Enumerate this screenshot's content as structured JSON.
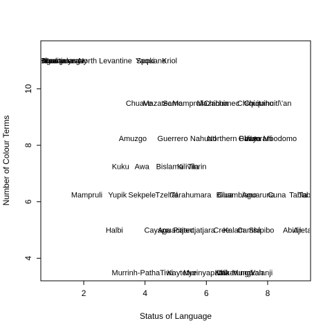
{
  "chart_data": {
    "type": "scatter",
    "marker": "text-labels",
    "title": "",
    "xlabel": "Status of Language",
    "ylabel": "Number of Colour Terms",
    "xlim": [
      0.6,
      9.4
    ],
    "ylim": [
      3.2,
      11.7
    ],
    "xticks": [
      2,
      4,
      6,
      8
    ],
    "yticks": [
      4,
      6,
      8,
      10
    ],
    "grid": false,
    "legend": "none",
    "points": [
      {
        "x": 0.9,
        "y": 11,
        "label": "Ilgar"
      },
      {
        "x": 1.0,
        "y": 11,
        "label": "Burarra"
      },
      {
        "x": 1.1,
        "y": 11,
        "label": "Djambarrpuyngu"
      },
      {
        "x": 1.2,
        "y": 11,
        "label": "Gunditjmara"
      },
      {
        "x": 1.4,
        "y": 11,
        "label": "Yuwaalaraay"
      },
      {
        "x": 2.7,
        "y": 11,
        "label": "North Levantine"
      },
      {
        "x": 4.0,
        "y": 11,
        "label": "Yaqui"
      },
      {
        "x": 4.2,
        "y": 11,
        "label": "Spokane"
      },
      {
        "x": 4.8,
        "y": 11,
        "label": "Kriol"
      },
      {
        "x": 3.8,
        "y": 9.5,
        "label": "Chuave"
      },
      {
        "x": 4.4,
        "y": 9.5,
        "label": "Mazatec"
      },
      {
        "x": 4.9,
        "y": 9.5,
        "label": "Samo"
      },
      {
        "x": 5.4,
        "y": 9.5,
        "label": "Mampruli"
      },
      {
        "x": 6.2,
        "y": 9.5,
        "label": "Mazahua"
      },
      {
        "x": 6.5,
        "y": 9.5,
        "label": "Chichimec"
      },
      {
        "x": 7.6,
        "y": 9.5,
        "label": "Chiquitano"
      },
      {
        "x": 8.0,
        "y": 9.5,
        "label": "Chiquihuitl\\'an"
      },
      {
        "x": 3.6,
        "y": 8.25,
        "label": "Amuzgo"
      },
      {
        "x": 4.9,
        "y": 8.25,
        "label": "Guerrero"
      },
      {
        "x": 5.9,
        "y": 8.25,
        "label": "Nahuatl"
      },
      {
        "x": 6.9,
        "y": 8.25,
        "label": "Northern Paiute"
      },
      {
        "x": 7.7,
        "y": 8.25,
        "label": "Waorani"
      },
      {
        "x": 8.0,
        "y": 8.25,
        "label": "Gbaya Mbodomo"
      },
      {
        "x": 3.2,
        "y": 7.25,
        "label": "Kuku"
      },
      {
        "x": 3.9,
        "y": 7.25,
        "label": "Awa"
      },
      {
        "x": 4.8,
        "y": 7.25,
        "label": "Bislama"
      },
      {
        "x": 5.4,
        "y": 7.25,
        "label": "Kilivila"
      },
      {
        "x": 5.7,
        "y": 7.25,
        "label": "Tinrin"
      },
      {
        "x": 2.1,
        "y": 6.25,
        "label": "Mampruli"
      },
      {
        "x": 3.1,
        "y": 6.25,
        "label": "Yupik"
      },
      {
        "x": 3.9,
        "y": 6.25,
        "label": "Sekpele"
      },
      {
        "x": 4.7,
        "y": 6.25,
        "label": "Tzeltal"
      },
      {
        "x": 5.5,
        "y": 6.25,
        "label": "Tarahumara"
      },
      {
        "x": 6.6,
        "y": 6.25,
        "label": "Bilua"
      },
      {
        "x": 7.0,
        "y": 6.25,
        "label": "Guambiano"
      },
      {
        "x": 7.7,
        "y": 6.25,
        "label": "Aguaruna"
      },
      {
        "x": 8.3,
        "y": 6.25,
        "label": "Cuna"
      },
      {
        "x": 9.0,
        "y": 6.25,
        "label": "Tabla"
      },
      {
        "x": 9.3,
        "y": 6.25,
        "label": "Tabla"
      },
      {
        "x": 3.0,
        "y": 5.0,
        "label": "Halbi"
      },
      {
        "x": 4.4,
        "y": 5.0,
        "label": "Cayapa"
      },
      {
        "x": 5.0,
        "y": 5.0,
        "label": "Aguacatec"
      },
      {
        "x": 5.6,
        "y": 5.0,
        "label": "Pitjantjatjara"
      },
      {
        "x": 6.5,
        "y": 5.0,
        "label": "Cree"
      },
      {
        "x": 6.9,
        "y": 5.0,
        "label": "Kalam"
      },
      {
        "x": 7.4,
        "y": 5.0,
        "label": "Camsá"
      },
      {
        "x": 7.8,
        "y": 5.0,
        "label": "Shipibo"
      },
      {
        "x": 8.8,
        "y": 5.0,
        "label": "Abidji"
      },
      {
        "x": 9.2,
        "y": 5.0,
        "label": "Aretan"
      },
      {
        "x": 3.7,
        "y": 3.5,
        "label": "Murrinh-Patha"
      },
      {
        "x": 4.7,
        "y": 3.5,
        "label": "Tiwi"
      },
      {
        "x": 5.2,
        "y": 3.5,
        "label": "Kaytetye"
      },
      {
        "x": 6.0,
        "y": 3.5,
        "label": "Murinyapatha"
      },
      {
        "x": 6.9,
        "y": 3.5,
        "label": "Kalkatungu"
      },
      {
        "x": 7.1,
        "y": 3.5,
        "label": "Wik-Mungkan"
      },
      {
        "x": 7.8,
        "y": 3.5,
        "label": "Valanji"
      }
    ]
  }
}
